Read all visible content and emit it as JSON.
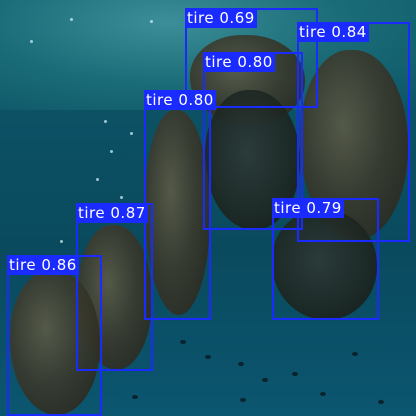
{
  "detections": [
    {
      "label": "tire 0.69"
    },
    {
      "label": "tire 0.84"
    },
    {
      "label": "tire 0.80"
    },
    {
      "label": "tire 0.80"
    },
    {
      "label": "tire 0.87"
    },
    {
      "label": "tire 0.79"
    },
    {
      "label": "tire 0.86"
    }
  ],
  "colors": {
    "box": "#1a2bff",
    "label_text": "#ffffff"
  }
}
